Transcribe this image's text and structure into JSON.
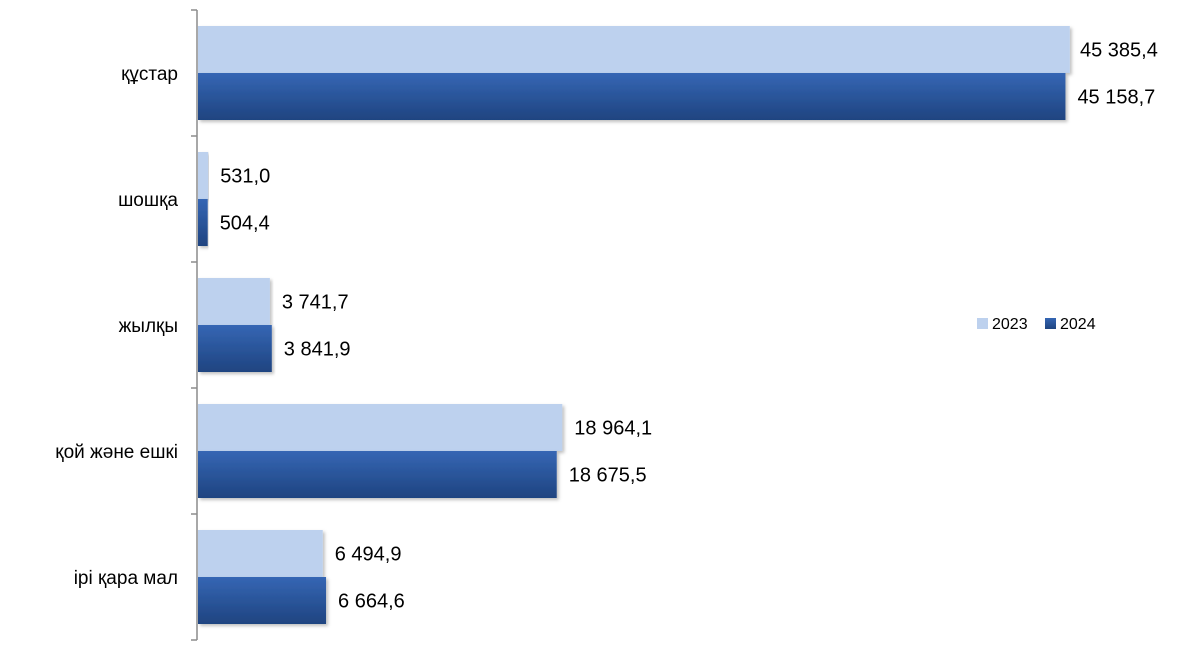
{
  "chart_data": {
    "type": "bar",
    "orientation": "horizontal",
    "categories": [
      "құстар",
      "шошқа",
      "жылқы",
      "қой және ешкі",
      "ірі қара мал"
    ],
    "series": [
      {
        "name": "2023",
        "color": "#bdd1ee",
        "values": [
          45385.4,
          531.0,
          3741.7,
          18964.1,
          6494.9
        ],
        "labels": [
          "45 385,4",
          "531,0",
          "3 741,7",
          "18 964,1",
          "6 494,9"
        ]
      },
      {
        "name": "2024",
        "color": "#2a5699",
        "values": [
          45158.7,
          504.4,
          3841.9,
          18675.5,
          6664.6
        ],
        "labels": [
          "45 158,7",
          "504,4",
          "3 841,9",
          "18 675,5",
          "6 664,6"
        ]
      }
    ],
    "xlim": [
      0,
      45500
    ],
    "grid": false,
    "legend_position": "right"
  }
}
